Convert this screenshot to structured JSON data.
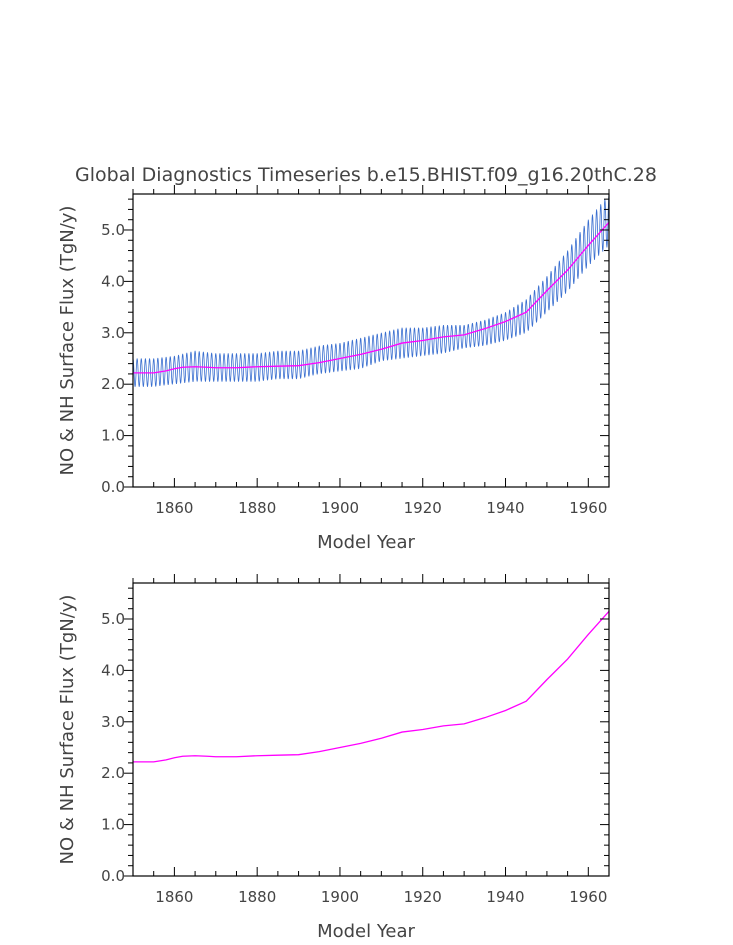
{
  "chart_data": [
    {
      "type": "line",
      "title": "Global Diagnostics Timeseries b.e15.BHIST.f09_g16.20thC.28",
      "xlabel": "Model Year",
      "ylabel": "NO & NH Surface Flux (TgN/y)",
      "xlim": [
        1850,
        1965
      ],
      "ylim": [
        0,
        5.7
      ],
      "x_ticks": [
        "1860",
        "1880",
        "1900",
        "1920",
        "1940",
        "1960"
      ],
      "y_ticks": [
        "0.0",
        "1.0",
        "2.0",
        "3.0",
        "4.0",
        "5.0"
      ],
      "grid": false,
      "series": [
        {
          "kind": "monthly-envelope",
          "color": "#3a6fd0",
          "x": [
            1850,
            1855,
            1860,
            1865,
            1870,
            1875,
            1880,
            1885,
            1890,
            1895,
            1900,
            1905,
            1910,
            1915,
            1920,
            1925,
            1930,
            1935,
            1940,
            1945,
            1950,
            1955,
            1960,
            1965
          ],
          "min": [
            1.95,
            1.95,
            2.0,
            2.05,
            2.05,
            2.05,
            2.05,
            2.1,
            2.1,
            2.2,
            2.25,
            2.3,
            2.45,
            2.5,
            2.55,
            2.6,
            2.7,
            2.75,
            2.85,
            3.0,
            3.4,
            3.8,
            4.3,
            4.7
          ],
          "max": [
            2.5,
            2.5,
            2.55,
            2.65,
            2.6,
            2.6,
            2.6,
            2.65,
            2.65,
            2.75,
            2.8,
            2.9,
            3.0,
            3.1,
            3.1,
            3.15,
            3.15,
            3.25,
            3.4,
            3.65,
            4.1,
            4.6,
            5.2,
            5.7
          ]
        },
        {
          "kind": "annual-mean",
          "color": "#ff00ff",
          "x": [
            1850,
            1855,
            1858,
            1860,
            1862,
            1865,
            1868,
            1870,
            1875,
            1880,
            1885,
            1890,
            1895,
            1900,
            1905,
            1910,
            1915,
            1920,
            1925,
            1930,
            1935,
            1940,
            1945,
            1950,
            1955,
            1960,
            1965
          ],
          "values": [
            2.22,
            2.22,
            2.26,
            2.3,
            2.33,
            2.34,
            2.33,
            2.32,
            2.32,
            2.34,
            2.35,
            2.36,
            2.42,
            2.5,
            2.58,
            2.68,
            2.8,
            2.85,
            2.92,
            2.96,
            3.08,
            3.22,
            3.4,
            3.82,
            4.22,
            4.7,
            5.15
          ]
        }
      ]
    },
    {
      "type": "line",
      "xlabel": "Model Year",
      "ylabel": "NO & NH Surface Flux (TgN/y)",
      "xlim": [
        1850,
        1965
      ],
      "ylim": [
        0,
        5.7
      ],
      "x_ticks": [
        "1860",
        "1880",
        "1900",
        "1920",
        "1940",
        "1960"
      ],
      "y_ticks": [
        "0.0",
        "1.0",
        "2.0",
        "3.0",
        "4.0",
        "5.0"
      ],
      "grid": false,
      "series": [
        {
          "kind": "annual-mean",
          "color": "#ff00ff",
          "x": [
            1850,
            1855,
            1858,
            1860,
            1862,
            1865,
            1868,
            1870,
            1875,
            1880,
            1885,
            1890,
            1895,
            1900,
            1905,
            1910,
            1915,
            1920,
            1925,
            1930,
            1935,
            1940,
            1945,
            1950,
            1955,
            1960,
            1965
          ],
          "values": [
            2.22,
            2.22,
            2.26,
            2.3,
            2.33,
            2.34,
            2.33,
            2.32,
            2.32,
            2.34,
            2.35,
            2.36,
            2.42,
            2.5,
            2.58,
            2.68,
            2.8,
            2.85,
            2.92,
            2.96,
            3.08,
            3.22,
            3.4,
            3.82,
            4.22,
            4.7,
            5.15
          ]
        }
      ]
    }
  ]
}
